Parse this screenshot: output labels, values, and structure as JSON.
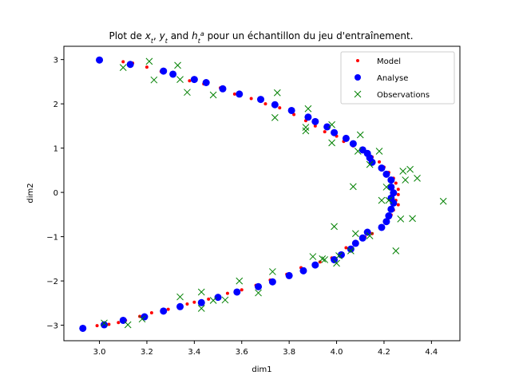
{
  "chart_data": {
    "type": "scatter",
    "title": "Plot de x_t, y_t and h_t^a pour un échantillon du jeu d'entraînement.",
    "title_parts": {
      "prefix": "Plot de ",
      "x_sym": "x",
      "x_sub": "t",
      "sep1": ", ",
      "y_sym": "y",
      "y_sub": "t",
      "mid": " and ",
      "h_sym": "h",
      "h_sub": "t",
      "h_sup": "a",
      "suffix": " pour un échantillon du jeu d'entraînement."
    },
    "xlabel": "dim1",
    "ylabel": "dim2",
    "xlim": [
      2.85,
      4.52
    ],
    "ylim": [
      -3.35,
      3.3
    ],
    "xticks": [
      "3.0",
      "3.2",
      "3.4",
      "3.6",
      "3.8",
      "4.0",
      "4.2",
      "4.4"
    ],
    "yticks": [
      "−3",
      "−2",
      "−1",
      "0",
      "1",
      "2",
      "3"
    ],
    "grid": false,
    "legend_position": "top-right",
    "series": [
      {
        "name": "Model",
        "marker": "small-dot",
        "color": "#ff0000",
        "points": [
          [
            3.1,
            2.95
          ],
          [
            3.14,
            2.92
          ],
          [
            3.2,
            2.83
          ],
          [
            3.26,
            2.73
          ],
          [
            3.31,
            2.63
          ],
          [
            3.38,
            2.52
          ],
          [
            3.44,
            2.45
          ],
          [
            3.51,
            2.36
          ],
          [
            3.57,
            2.22
          ],
          [
            3.64,
            2.12
          ],
          [
            3.7,
            2.0
          ],
          [
            3.76,
            1.91
          ],
          [
            3.82,
            1.76
          ],
          [
            3.87,
            1.62
          ],
          [
            3.91,
            1.5
          ],
          [
            3.95,
            1.37
          ],
          [
            4.0,
            1.27
          ],
          [
            4.03,
            1.15
          ],
          [
            4.07,
            1.05
          ],
          [
            4.11,
            0.93
          ],
          [
            4.15,
            0.8
          ],
          [
            4.18,
            0.69
          ],
          [
            4.2,
            0.57
          ],
          [
            4.22,
            0.45
          ],
          [
            4.24,
            0.32
          ],
          [
            4.25,
            0.21
          ],
          [
            4.26,
            0.07
          ],
          [
            4.26,
            -0.05
          ],
          [
            4.25,
            -0.18
          ],
          [
            4.26,
            -0.28
          ],
          [
            4.24,
            -0.4
          ],
          [
            4.23,
            -0.51
          ],
          [
            4.21,
            -0.65
          ],
          [
            4.19,
            -0.78
          ],
          [
            4.15,
            -0.93
          ],
          [
            4.12,
            -1.01
          ],
          [
            4.08,
            -1.16
          ],
          [
            4.04,
            -1.25
          ],
          [
            4.02,
            -1.38
          ],
          [
            3.98,
            -1.48
          ],
          [
            3.93,
            -1.57
          ],
          [
            3.85,
            -1.7
          ],
          [
            3.79,
            -1.85
          ],
          [
            3.72,
            -1.98
          ],
          [
            3.66,
            -2.1
          ],
          [
            3.6,
            -2.2
          ],
          [
            3.54,
            -2.28
          ],
          [
            3.46,
            -2.41
          ],
          [
            3.4,
            -2.48
          ],
          [
            3.37,
            -2.52
          ],
          [
            3.29,
            -2.64
          ],
          [
            3.22,
            -2.72
          ],
          [
            3.17,
            -2.8
          ],
          [
            3.11,
            -2.89
          ],
          [
            3.08,
            -2.94
          ],
          [
            3.04,
            -2.98
          ],
          [
            2.99,
            -3.01
          ]
        ]
      },
      {
        "name": "Analyse",
        "marker": "circle",
        "color": "#0000ff",
        "points": [
          [
            3.0,
            2.99
          ],
          [
            3.13,
            2.89
          ],
          [
            3.27,
            2.74
          ],
          [
            3.31,
            2.67
          ],
          [
            3.4,
            2.55
          ],
          [
            3.45,
            2.48
          ],
          [
            3.52,
            2.34
          ],
          [
            3.59,
            2.22
          ],
          [
            3.68,
            2.1
          ],
          [
            3.74,
            1.98
          ],
          [
            3.81,
            1.85
          ],
          [
            3.88,
            1.7
          ],
          [
            3.91,
            1.6
          ],
          [
            3.96,
            1.48
          ],
          [
            3.99,
            1.35
          ],
          [
            4.04,
            1.22
          ],
          [
            4.07,
            1.1
          ],
          [
            4.11,
            0.96
          ],
          [
            4.13,
            0.88
          ],
          [
            4.14,
            0.78
          ],
          [
            4.15,
            0.68
          ],
          [
            4.19,
            0.55
          ],
          [
            4.21,
            0.41
          ],
          [
            4.23,
            0.28
          ],
          [
            4.23,
            0.12
          ],
          [
            4.24,
            -0.01
          ],
          [
            4.23,
            -0.13
          ],
          [
            4.24,
            -0.24
          ],
          [
            4.23,
            -0.38
          ],
          [
            4.22,
            -0.53
          ],
          [
            4.21,
            -0.66
          ],
          [
            4.19,
            -0.79
          ],
          [
            4.13,
            -0.9
          ],
          [
            4.11,
            -1.03
          ],
          [
            4.08,
            -1.15
          ],
          [
            4.06,
            -1.28
          ],
          [
            4.02,
            -1.41
          ],
          [
            3.99,
            -1.52
          ],
          [
            3.91,
            -1.64
          ],
          [
            3.86,
            -1.77
          ],
          [
            3.8,
            -1.88
          ],
          [
            3.73,
            -2.02
          ],
          [
            3.67,
            -2.13
          ],
          [
            3.58,
            -2.25
          ],
          [
            3.5,
            -2.37
          ],
          [
            3.43,
            -2.49
          ],
          [
            3.34,
            -2.58
          ],
          [
            3.27,
            -2.68
          ],
          [
            3.19,
            -2.81
          ],
          [
            3.1,
            -2.89
          ],
          [
            3.02,
            -2.99
          ],
          [
            2.93,
            -3.07
          ]
        ]
      },
      {
        "name": "Observations",
        "marker": "x",
        "color": "#008000",
        "points": [
          [
            3.1,
            2.82
          ],
          [
            3.21,
            2.96
          ],
          [
            3.23,
            2.54
          ],
          [
            3.33,
            2.87
          ],
          [
            3.34,
            2.55
          ],
          [
            3.37,
            2.26
          ],
          [
            3.48,
            2.2
          ],
          [
            3.75,
            2.25
          ],
          [
            3.74,
            1.69
          ],
          [
            3.87,
            1.39
          ],
          [
            3.87,
            1.47
          ],
          [
            3.88,
            1.89
          ],
          [
            3.98,
            1.53
          ],
          [
            3.98,
            1.12
          ],
          [
            4.09,
            0.93
          ],
          [
            4.1,
            1.3
          ],
          [
            4.14,
            0.63
          ],
          [
            4.18,
            0.93
          ],
          [
            4.21,
            0.12
          ],
          [
            4.28,
            0.48
          ],
          [
            4.29,
            0.28
          ],
          [
            4.31,
            0.52
          ],
          [
            4.34,
            0.32
          ],
          [
            4.07,
            0.13
          ],
          [
            4.19,
            -0.18
          ],
          [
            4.22,
            -0.18
          ],
          [
            4.45,
            -0.2
          ],
          [
            4.27,
            -0.6
          ],
          [
            4.32,
            -0.59
          ],
          [
            4.25,
            -1.32
          ],
          [
            4.08,
            -0.93
          ],
          [
            4.14,
            -0.98
          ],
          [
            3.99,
            -0.77
          ],
          [
            4.06,
            -1.32
          ],
          [
            4.01,
            -1.43
          ],
          [
            3.94,
            -1.5
          ],
          [
            3.9,
            -1.45
          ],
          [
            3.95,
            -1.52
          ],
          [
            4.0,
            -1.6
          ],
          [
            3.73,
            -1.79
          ],
          [
            3.59,
            -2.0
          ],
          [
            3.67,
            -2.27
          ],
          [
            3.48,
            -2.44
          ],
          [
            3.53,
            -2.43
          ],
          [
            3.43,
            -2.25
          ],
          [
            3.43,
            -2.62
          ],
          [
            3.34,
            -2.36
          ],
          [
            3.18,
            -2.86
          ],
          [
            3.12,
            -2.99
          ],
          [
            3.02,
            -2.95
          ]
        ]
      }
    ]
  }
}
